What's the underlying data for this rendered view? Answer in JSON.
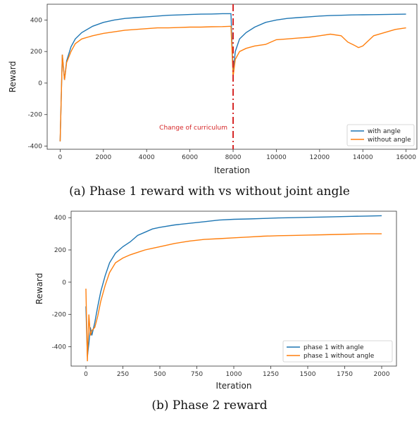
{
  "chart_data": [
    {
      "type": "line",
      "caption": "(a) Phase 1 reward with vs without joint angle",
      "xlabel": "Iteration",
      "ylabel": "Reward",
      "xlim": [
        -600,
        16500
      ],
      "ylim": [
        -420,
        500
      ],
      "xticks": [
        0,
        2000,
        4000,
        6000,
        8000,
        10000,
        12000,
        14000,
        16000
      ],
      "yticks": [
        -400,
        -200,
        0,
        200,
        400
      ],
      "legend_position": "bottom-right",
      "annotation": {
        "text": "Change of curriculum",
        "x": 8000
      },
      "colors": {
        "with": "#1f77b4",
        "without": "#ff7f0e",
        "annotation": "#d62728"
      },
      "series": [
        {
          "name": "with angle",
          "color": "#1f77b4",
          "x": [
            0,
            100,
            200,
            300,
            500,
            700,
            1000,
            1500,
            2000,
            2500,
            3000,
            3500,
            4000,
            4500,
            5000,
            5500,
            6000,
            6500,
            7000,
            7500,
            7900,
            8000,
            8100,
            8300,
            8600,
            9000,
            9500,
            10000,
            10500,
            11000,
            11500,
            12000,
            12500,
            13000,
            13500,
            14000,
            14500,
            15000,
            15500,
            16000
          ],
          "y": [
            -370,
            180,
            20,
            140,
            230,
            280,
            320,
            360,
            385,
            400,
            410,
            415,
            420,
            425,
            430,
            432,
            435,
            437,
            438,
            440,
            440,
            60,
            200,
            280,
            320,
            355,
            385,
            400,
            410,
            415,
            420,
            425,
            428,
            430,
            432,
            433,
            434,
            435,
            436,
            437
          ]
        },
        {
          "name": "without angle",
          "color": "#ff7f0e",
          "x": [
            0,
            100,
            200,
            300,
            500,
            700,
            1000,
            1500,
            2000,
            2500,
            3000,
            3500,
            4000,
            4500,
            5000,
            5500,
            6000,
            6500,
            7000,
            7500,
            7900,
            8000,
            8100,
            8300,
            8600,
            9000,
            9500,
            10000,
            10500,
            11000,
            11500,
            12000,
            12500,
            13000,
            13300,
            13600,
            13800,
            14000,
            14500,
            15000,
            15500,
            16000
          ],
          "y": [
            -370,
            180,
            20,
            130,
            200,
            250,
            280,
            300,
            315,
            325,
            335,
            340,
            345,
            350,
            350,
            352,
            355,
            355,
            357,
            358,
            360,
            40,
            150,
            200,
            220,
            235,
            245,
            275,
            280,
            285,
            290,
            300,
            310,
            300,
            260,
            240,
            225,
            235,
            300,
            320,
            340,
            350
          ]
        }
      ]
    },
    {
      "type": "line",
      "caption": "(b) Phase 2 reward",
      "xlabel": "Iteration",
      "ylabel": "Reward",
      "xlim": [
        -100,
        2100
      ],
      "ylim": [
        -520,
        440
      ],
      "xticks": [
        0,
        250,
        500,
        750,
        1000,
        1250,
        1500,
        1750,
        2000
      ],
      "yticks": [
        -400,
        -200,
        0,
        200,
        400
      ],
      "legend_position": "bottom-right",
      "series": [
        {
          "name": "phase 1 with angle",
          "color": "#1f77b4",
          "x": [
            0,
            10,
            20,
            30,
            40,
            60,
            80,
            100,
            130,
            160,
            200,
            250,
            300,
            350,
            400,
            450,
            500,
            600,
            700,
            800,
            900,
            1000,
            1100,
            1200,
            1300,
            1400,
            1500,
            1600,
            1700,
            1800,
            1900,
            2000
          ],
          "y": [
            -150,
            -460,
            -380,
            -280,
            -330,
            -250,
            -150,
            -60,
            40,
            120,
            180,
            220,
            250,
            290,
            310,
            330,
            340,
            355,
            365,
            375,
            385,
            390,
            392,
            395,
            398,
            400,
            402,
            404,
            406,
            408,
            410,
            412
          ]
        },
        {
          "name": "phase 1 without angle",
          "color": "#ff7f0e",
          "x": [
            0,
            10,
            20,
            30,
            40,
            60,
            80,
            100,
            130,
            160,
            200,
            250,
            300,
            350,
            400,
            450,
            500,
            600,
            700,
            800,
            900,
            1000,
            1100,
            1200,
            1300,
            1400,
            1500,
            1600,
            1700,
            1800,
            1900,
            2000
          ],
          "y": [
            -40,
            -490,
            -200,
            -330,
            -300,
            -280,
            -210,
            -120,
            -20,
            60,
            120,
            150,
            170,
            185,
            200,
            210,
            220,
            240,
            255,
            265,
            270,
            275,
            280,
            285,
            288,
            290,
            292,
            294,
            296,
            298,
            300,
            300
          ]
        }
      ]
    }
  ]
}
